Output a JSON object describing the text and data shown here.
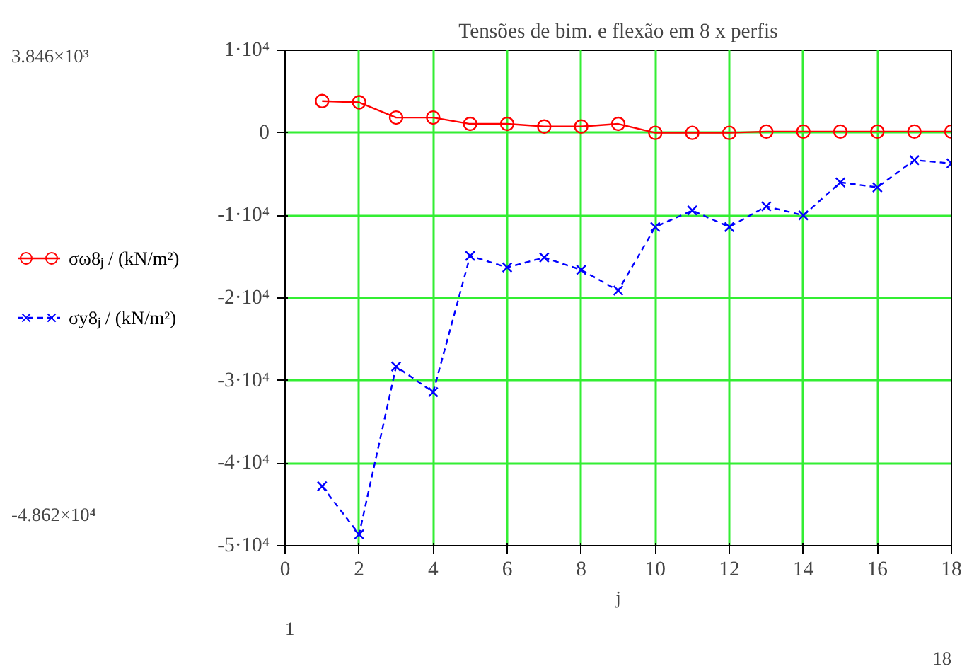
{
  "chart_data": {
    "type": "line",
    "title": "Tensões de bim. e flexão em 8 x perfis",
    "xlabel": "j",
    "x": [
      1,
      2,
      3,
      4,
      5,
      6,
      7,
      8,
      9,
      10,
      11,
      12,
      13,
      14,
      15,
      16,
      17,
      18
    ],
    "series": [
      {
        "name": "σω8ⱼ / (kN/m²)",
        "color": "#ff0000",
        "marker": "circle",
        "line_style": "solid",
        "values": [
          3846,
          3700,
          1850,
          1850,
          1080,
          1080,
          770,
          770,
          1080,
          0,
          0,
          0,
          150,
          150,
          150,
          150,
          150,
          150
        ]
      },
      {
        "name": "σy8ⱼ / (kN/m²)",
        "color": "#0000ff",
        "marker": "cross",
        "line_style": "dashed",
        "values": [
          -42800,
          -48620,
          -28300,
          -31400,
          -14900,
          -16300,
          -15100,
          -16600,
          -19100,
          -11400,
          -9400,
          -11400,
          -8900,
          -10000,
          -6000,
          -6600,
          -3300,
          -3700
        ]
      }
    ],
    "xlim": [
      0,
      18
    ],
    "xticks": [
      0,
      2,
      4,
      6,
      8,
      10,
      12,
      14,
      16,
      18
    ],
    "ylim": [
      -50000,
      10000
    ],
    "yticks": [
      {
        "value": 10000,
        "label": "1·10⁴"
      },
      0,
      {
        "value": -10000,
        "label": "-1·10⁴"
      },
      {
        "value": -20000,
        "label": "-2·10⁴"
      },
      {
        "value": -30000,
        "label": "-3·10⁴"
      },
      {
        "value": -40000,
        "label": "-4·10⁴"
      },
      {
        "value": -50000,
        "label": "-5·10⁴"
      }
    ],
    "grid": true,
    "legend": "left",
    "annotations": [
      "3.846×10³",
      "-4.862×10⁴",
      "1",
      "18"
    ]
  }
}
